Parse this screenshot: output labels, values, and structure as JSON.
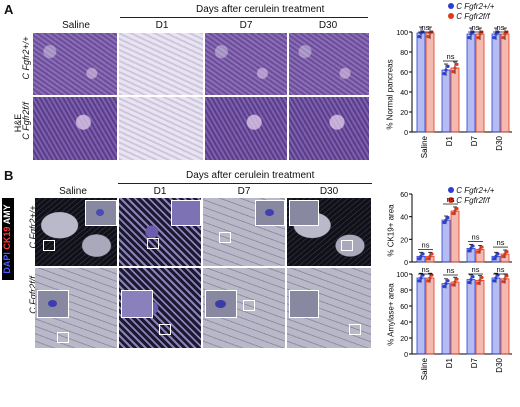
{
  "panelA": {
    "letter": "A",
    "header": "Days after cerulein treatment",
    "columns": [
      "Saline",
      "D1",
      "D7",
      "D30"
    ],
    "row_label_1": "C Fgfr2+/+",
    "row_label_2": "C Fgfr2f/f",
    "stain_label": "H&E"
  },
  "panelB": {
    "letter": "B",
    "header": "Days after cerulein treatment",
    "columns": [
      "Saline",
      "D1",
      "D7",
      "D30"
    ],
    "row_label_1": "C Fgfr2+/+",
    "row_label_2": "C Fgfr2f/f",
    "stain_dapi": "DAPI",
    "stain_ck19": "CK19",
    "stain_amy": "AMY"
  },
  "legend": {
    "series1": "C Fgfr2+/+",
    "series2": "C Fgfr2f/f",
    "color1": "#2b3fd6",
    "color2": "#e03a1e"
  },
  "chart_data": [
    {
      "type": "bar",
      "ylabel": "% Normal pancreas",
      "categories": [
        "Saline",
        "D1",
        "D7",
        "D30"
      ],
      "ylim": [
        0,
        100
      ],
      "yticks": [
        0,
        20,
        40,
        60,
        80,
        100
      ],
      "series": [
        {
          "name": "C Fgfr2+/+",
          "values": [
            99,
            62,
            98,
            98
          ]
        },
        {
          "name": "C Fgfr2f/f",
          "values": [
            99,
            64,
            98,
            98
          ]
        }
      ],
      "annotations": [
        "ns",
        "ns",
        "ns",
        "ns"
      ]
    },
    {
      "type": "bar",
      "ylabel": "% CK19+ area",
      "categories": [
        "Saline",
        "D1",
        "D7",
        "D30"
      ],
      "ylim": [
        0,
        60
      ],
      "yticks": [
        0,
        20,
        40,
        60
      ],
      "series": [
        {
          "name": "C Fgfr2+/+",
          "values": [
            5,
            37,
            12,
            5
          ]
        },
        {
          "name": "C Fgfr2f/f",
          "values": [
            5,
            45,
            11,
            7
          ]
        }
      ],
      "annotations": [
        "ns",
        "ns",
        "ns",
        "ns"
      ]
    },
    {
      "type": "bar",
      "ylabel": "% Amylase+ area",
      "categories": [
        "Saline",
        "D1",
        "D7",
        "D30"
      ],
      "ylim": [
        0,
        100
      ],
      "yticks": [
        0,
        20,
        40,
        60,
        80,
        100
      ],
      "series": [
        {
          "name": "C Fgfr2+/+",
          "values": [
            95,
            88,
            93,
            95
          ]
        },
        {
          "name": "C Fgfr2f/f",
          "values": [
            95,
            90,
            92,
            94
          ]
        }
      ],
      "annotations": [
        "ns",
        "ns",
        "ns",
        "ns"
      ]
    }
  ]
}
